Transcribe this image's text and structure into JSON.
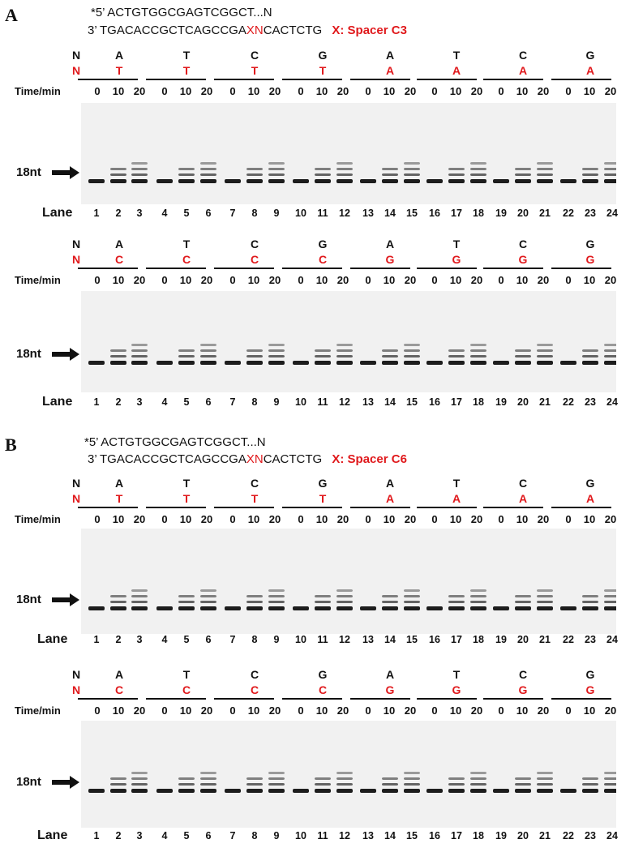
{
  "panels": [
    {
      "letter": "A",
      "seq_top": {
        "prefix": "*5’ ",
        "seq": "ACTGTGGCGAGTCGGCT...N"
      },
      "seq_bottom": {
        "prefix": "3’ ",
        "left": "TGACACCGCTCAGCCGA",
        "mid": "XN",
        "right": "CACTCTG"
      },
      "spacer": "X: Spacer C3",
      "gels": [
        {
          "n_label": "N",
          "n_red_label": "N",
          "top_row": [
            "A",
            "T",
            "C",
            "G",
            "A",
            "T",
            "C",
            "G"
          ],
          "red_row": [
            "T",
            "T",
            "T",
            "T",
            "A",
            "A",
            "A",
            "A"
          ]
        },
        {
          "n_label": "N",
          "n_red_label": "N",
          "top_row": [
            "A",
            "T",
            "C",
            "G",
            "A",
            "T",
            "C",
            "G"
          ],
          "red_row": [
            "C",
            "C",
            "C",
            "C",
            "G",
            "G",
            "G",
            "G"
          ]
        }
      ]
    },
    {
      "letter": "B",
      "seq_top": {
        "prefix": "*5’ ",
        "seq": "ACTGTGGCGAGTCGGCT...N"
      },
      "seq_bottom": {
        "prefix": "3’ ",
        "left": "TGACACCGCTCAGCCGA",
        "mid": "XN",
        "right": "CACTCTG"
      },
      "spacer": "X: Spacer C6",
      "gels": [
        {
          "n_label": "N",
          "n_red_label": "N",
          "top_row": [
            "A",
            "T",
            "C",
            "G",
            "A",
            "T",
            "C",
            "G"
          ],
          "red_row": [
            "T",
            "T",
            "T",
            "T",
            "A",
            "A",
            "A",
            "A"
          ]
        },
        {
          "n_label": "N",
          "n_red_label": "N",
          "top_row": [
            "A",
            "T",
            "C",
            "G",
            "A",
            "T",
            "C",
            "G"
          ],
          "red_row": [
            "C",
            "C",
            "C",
            "C",
            "G",
            "G",
            "G",
            "G"
          ]
        }
      ]
    }
  ],
  "time_label": "Time/min",
  "times": [
    "0",
    "10",
    "20"
  ],
  "lane_label": "Lane",
  "lanes": [
    "1",
    "2",
    "3",
    "4",
    "5",
    "6",
    "7",
    "8",
    "9",
    "10",
    "11",
    "12",
    "13",
    "14",
    "15",
    "16",
    "17",
    "18",
    "19",
    "20",
    "21",
    "22",
    "23",
    "24"
  ],
  "marker_label": "18nt",
  "colors": {
    "red": "#e0191c",
    "gel_bg": "#f1f1f1",
    "band": "#111111"
  }
}
